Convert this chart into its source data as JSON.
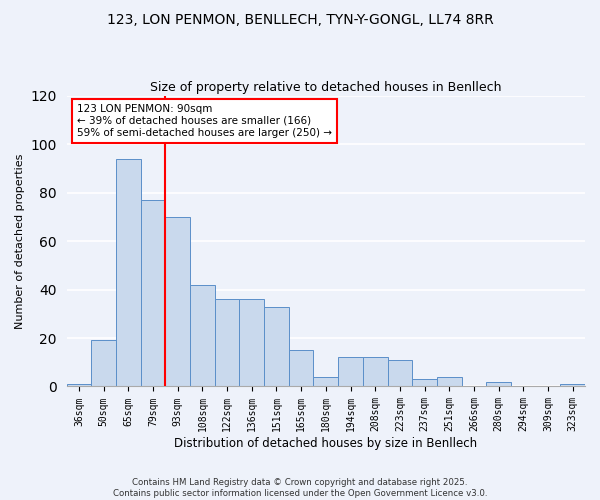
{
  "title1": "123, LON PENMON, BENLLECH, TYN-Y-GONGL, LL74 8RR",
  "title2": "Size of property relative to detached houses in Benllech",
  "xlabel": "Distribution of detached houses by size in Benllech",
  "ylabel": "Number of detached properties",
  "categories": [
    "36sqm",
    "50sqm",
    "65sqm",
    "79sqm",
    "93sqm",
    "108sqm",
    "122sqm",
    "136sqm",
    "151sqm",
    "165sqm",
    "180sqm",
    "194sqm",
    "208sqm",
    "223sqm",
    "237sqm",
    "251sqm",
    "266sqm",
    "280sqm",
    "294sqm",
    "309sqm",
    "323sqm"
  ],
  "values": [
    1,
    19,
    94,
    77,
    70,
    42,
    36,
    36,
    33,
    15,
    4,
    12,
    12,
    11,
    3,
    4,
    0,
    2,
    0,
    0,
    1
  ],
  "bar_color": "#c9d9ed",
  "bar_edge_color": "#5b8fc9",
  "red_line_index": 3.5,
  "annotation_text": "123 LON PENMON: 90sqm\n← 39% of detached houses are smaller (166)\n59% of semi-detached houses are larger (250) →",
  "annotation_box_color": "white",
  "annotation_box_edge_color": "red",
  "footer1": "Contains HM Land Registry data © Crown copyright and database right 2025.",
  "footer2": "Contains public sector information licensed under the Open Government Licence v3.0.",
  "ylim": [
    0,
    120
  ],
  "yticks": [
    0,
    20,
    40,
    60,
    80,
    100,
    120
  ],
  "background_color": "#eef2fa",
  "grid_color": "white"
}
